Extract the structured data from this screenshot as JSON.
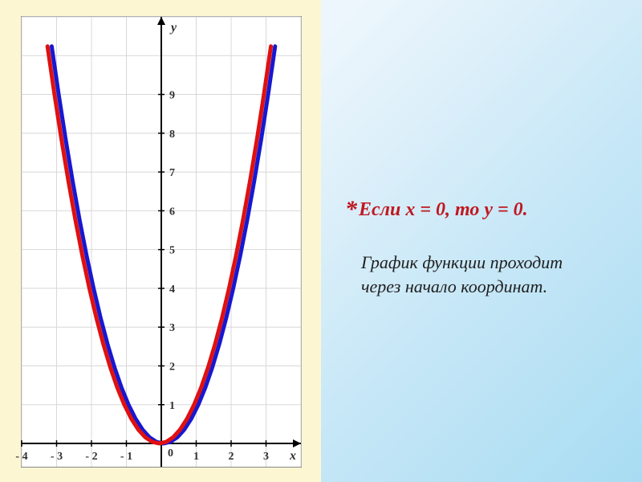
{
  "slide": {
    "background_gradient": [
      "#ffffff",
      "#eaf5fc",
      "#c9e8f7",
      "#a8dcf2"
    ],
    "left_panel_bg": "#fdf6d3"
  },
  "chart": {
    "type": "line",
    "frame_border_color": "#888888",
    "background_color": "#ffffff",
    "grid_color": "#d8d8d8",
    "axis_color": "#000000",
    "axis_width": 2,
    "x_axis_label": "x",
    "y_axis_label": "y",
    "axis_label_fontstyle": "italic",
    "axis_label_fontsize": 16,
    "tick_fontsize": 14,
    "tick_color": "#303030",
    "xlim": [
      -4,
      4
    ],
    "ylim": [
      -0.6,
      11
    ],
    "x_ticks": [
      -4,
      -3,
      -2,
      -1,
      1,
      2,
      3
    ],
    "x_tick_labels": [
      "- 4",
      "- 3",
      "- 2",
      "- 1",
      "1",
      "2",
      "3"
    ],
    "y_ticks": [
      1,
      2,
      3,
      4,
      5,
      6,
      7,
      8,
      9
    ],
    "origin_label": "0",
    "grid_x_step": 1,
    "grid_y_step": 1,
    "series": [
      {
        "name": "parabola-blue",
        "color": "#1818d0",
        "width": 5,
        "data_x": [
          -3.2,
          -3,
          -2.8,
          -2.6,
          -2.4,
          -2.2,
          -2,
          -1.8,
          -1.6,
          -1.4,
          -1.2,
          -1,
          -0.8,
          -0.6,
          -0.4,
          -0.2,
          0,
          0.2,
          0.4,
          0.6,
          0.8,
          1,
          1.2,
          1.4,
          1.6,
          1.8,
          2,
          2.2,
          2.4,
          2.6,
          2.8,
          3,
          3.2
        ],
        "data_y": [
          10.24,
          9,
          7.84,
          6.76,
          5.76,
          4.84,
          4,
          3.24,
          2.56,
          1.96,
          1.44,
          1,
          0.64,
          0.36,
          0.16,
          0.04,
          0,
          0.04,
          0.16,
          0.36,
          0.64,
          1,
          1.44,
          1.96,
          2.56,
          3.24,
          4,
          4.84,
          5.76,
          6.76,
          7.84,
          9,
          10.24
        ],
        "x_offset": 0.06
      },
      {
        "name": "parabola-red",
        "color": "#e01010",
        "width": 5,
        "data_x": [
          -3.2,
          -3,
          -2.8,
          -2.6,
          -2.4,
          -2.2,
          -2,
          -1.8,
          -1.6,
          -1.4,
          -1.2,
          -1,
          -0.8,
          -0.6,
          -0.4,
          -0.2,
          0,
          0.2,
          0.4,
          0.6,
          0.8,
          1,
          1.2,
          1.4,
          1.6,
          1.8,
          2,
          2.2,
          2.4,
          2.6,
          2.8,
          3,
          3.2
        ],
        "data_y": [
          10.24,
          9,
          7.84,
          6.76,
          5.76,
          4.84,
          4,
          3.24,
          2.56,
          1.96,
          1.44,
          1,
          0.64,
          0.36,
          0.16,
          0.04,
          0,
          0.04,
          0.16,
          0.36,
          0.64,
          1,
          1.44,
          1.96,
          2.56,
          3.24,
          4,
          4.84,
          5.76,
          6.76,
          7.84,
          9,
          10.24
        ],
        "x_offset": -0.06
      }
    ]
  },
  "text": {
    "asterisk": "*",
    "hypothesis": "Если  x = 0, то y = 0.",
    "body": "График функции проходит через начало координат."
  }
}
